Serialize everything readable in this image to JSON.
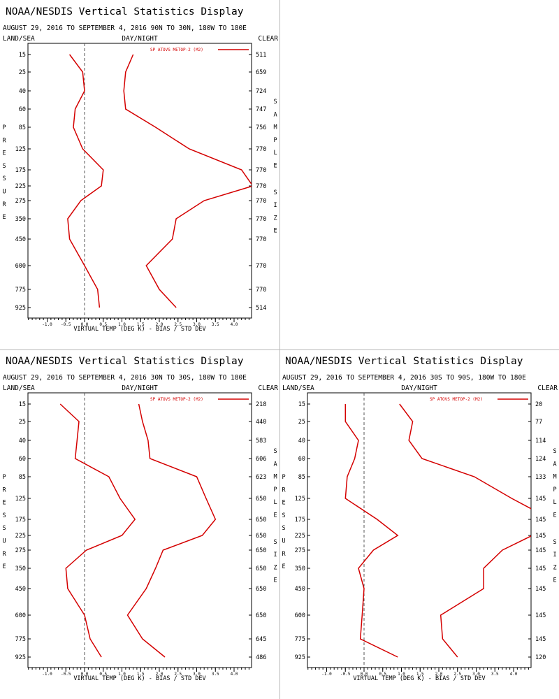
{
  "chart_data": [
    {
      "type": "line",
      "title": "NOAA/NESDIS Vertical Statistics Display",
      "subtitle": "AUGUST 29, 2016 TO SEPTEMBER 4, 2016  90N TO 30N, 180W TO 180E",
      "corner_left": "LAND/SEA",
      "corner_center": "DAY/NIGHT",
      "corner_right": "CLEAR",
      "xlabel": "VIRTUAL TEMP (DEG K) - BIAS / STD DEV",
      "ylabel": "PRESSURE",
      "right_label": "SAMPLE SIZE",
      "legend": "SP ATOVS METOP-2 (M2)",
      "xlim": [
        -1.5,
        4.5
      ],
      "xticks": [
        "-1.0",
        "-0.5",
        "0.0",
        "0.5",
        "1.0",
        "1.5",
        "2.0",
        "2.5",
        "3.0",
        "3.5",
        "4.0"
      ],
      "pressure_levels": [
        15,
        25,
        40,
        60,
        85,
        125,
        175,
        225,
        275,
        350,
        450,
        600,
        775,
        925
      ],
      "sample_size": [
        511,
        659,
        724,
        747,
        756,
        770,
        770,
        770,
        770,
        770,
        770,
        770,
        770,
        514
      ],
      "series": [
        {
          "values": [
            -0.4,
            -0.05,
            0.0,
            -0.25,
            -0.3,
            -0.05,
            0.5,
            0.45,
            -0.1,
            -0.45,
            -0.4,
            0.0,
            0.35,
            0.4
          ]
        },
        {
          "values": [
            1.3,
            1.1,
            1.05,
            1.1,
            1.9,
            2.8,
            4.2,
            4.5,
            3.2,
            2.45,
            2.35,
            1.65,
            2.0,
            2.45
          ]
        }
      ],
      "bias_zero_line": 0.0
    },
    {
      "type": "line",
      "title": "NOAA/NESDIS Vertical Statistics Display",
      "subtitle": "AUGUST 29, 2016 TO SEPTEMBER 4, 2016  30N TO 30S, 180W TO 180E",
      "corner_left": "LAND/SEA",
      "corner_center": "DAY/NIGHT",
      "corner_right": "CLEAR",
      "xlabel": "VIRTUAL TEMP (DEG K) - BIAS / STD DEV",
      "ylabel": "PRESSURE",
      "right_label": "SAMPLE SIZE",
      "legend": "SP ATOVS METOP-2 (M2)",
      "xlim": [
        -1.5,
        4.5
      ],
      "xticks": [
        "-1.0",
        "-0.5",
        "0.0",
        "0.5",
        "1.0",
        "1.5",
        "2.0",
        "2.5",
        "3.0",
        "3.5",
        "4.0"
      ],
      "pressure_levels": [
        15,
        25,
        40,
        60,
        85,
        125,
        175,
        225,
        275,
        350,
        450,
        600,
        775,
        925
      ],
      "sample_size": [
        218,
        440,
        583,
        606,
        623,
        650,
        650,
        650,
        650,
        650,
        650,
        650,
        645,
        486
      ],
      "series": [
        {
          "values": [
            -0.65,
            -0.15,
            -0.2,
            -0.25,
            0.65,
            0.95,
            1.35,
            1.0,
            0.05,
            -0.5,
            -0.45,
            0.0,
            0.15,
            0.45
          ]
        },
        {
          "values": [
            1.45,
            1.55,
            1.7,
            1.75,
            3.0,
            3.25,
            3.5,
            3.15,
            2.1,
            1.9,
            1.65,
            1.15,
            1.55,
            2.15
          ]
        }
      ],
      "bias_zero_line": 0.0
    },
    {
      "type": "line",
      "title": "NOAA/NESDIS Vertical Statistics Display",
      "subtitle": "AUGUST 29, 2016 TO SEPTEMBER 4, 2016  30S TO 90S, 180W TO 180E",
      "corner_left": "LAND/SEA",
      "corner_center": "DAY/NIGHT",
      "corner_right": "CLEAR",
      "xlabel": "VIRTUAL TEMP (DEG K) - BIAS / STD DEV",
      "ylabel": "PRESSURE",
      "right_label": "SAMPLE SIZE",
      "legend": "SP ATOVS METOP-2 (M2)",
      "xlim": [
        -1.5,
        4.5
      ],
      "xticks": [
        "-1.0",
        "-0.5",
        "0.0",
        "0.5",
        "1.0",
        "1.5",
        "2.0",
        "2.5",
        "3.0",
        "3.5",
        "4.0"
      ],
      "pressure_levels": [
        15,
        25,
        40,
        60,
        85,
        125,
        175,
        225,
        275,
        350,
        450,
        600,
        775,
        925
      ],
      "sample_size": [
        20,
        77,
        114,
        124,
        133,
        145,
        145,
        145,
        145,
        145,
        145,
        145,
        145,
        120
      ],
      "series": [
        {
          "values": [
            -0.5,
            -0.5,
            -0.15,
            -0.25,
            -0.45,
            -0.5,
            0.35,
            0.9,
            0.25,
            -0.15,
            0.0,
            -0.05,
            -0.1,
            0.9
          ]
        },
        {
          "values": [
            0.95,
            1.3,
            1.2,
            1.55,
            2.95,
            3.95,
            5.0,
            4.5,
            3.7,
            3.2,
            3.2,
            2.05,
            2.1,
            2.5
          ]
        }
      ],
      "bias_zero_line": 0.0
    }
  ]
}
